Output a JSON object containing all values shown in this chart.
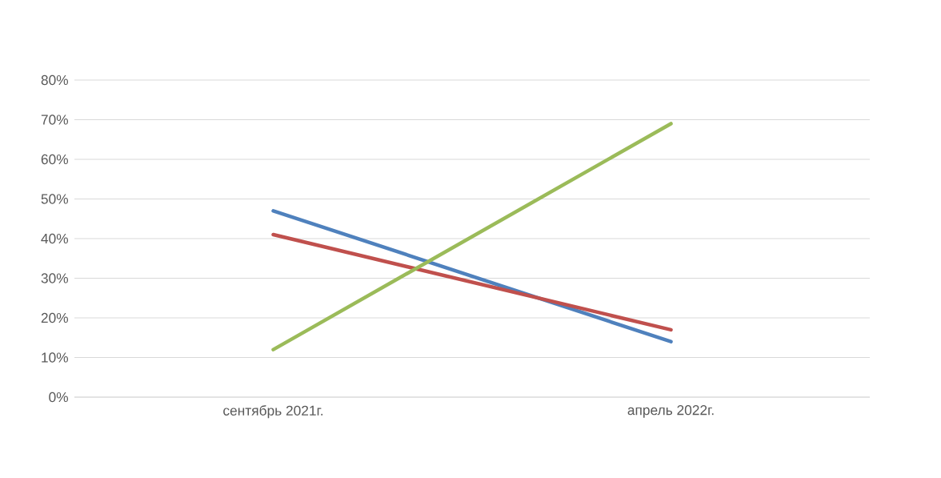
{
  "chart_data": {
    "type": "line",
    "categories": [
      "сентябрь 2021г.",
      "апрель 2022г."
    ],
    "series": [
      {
        "color": "#4f81bd",
        "values": [
          47,
          14
        ]
      },
      {
        "color": "#c0504d",
        "values": [
          41,
          17
        ]
      },
      {
        "color": "#9bbb59",
        "values": [
          12,
          69
        ]
      }
    ],
    "ylim": [
      0,
      80
    ],
    "yticks": [
      {
        "value": 0,
        "label": "0%"
      },
      {
        "value": 10,
        "label": "10%"
      },
      {
        "value": 20,
        "label": "20%"
      },
      {
        "value": 30,
        "label": "30%"
      },
      {
        "value": 40,
        "label": "40%"
      },
      {
        "value": 50,
        "label": "50%"
      },
      {
        "value": 60,
        "label": "60%"
      },
      {
        "value": 70,
        "label": "70%"
      },
      {
        "value": 80,
        "label": "80%"
      }
    ],
    "grid": "y",
    "marker": "none",
    "line_style": "solid"
  }
}
